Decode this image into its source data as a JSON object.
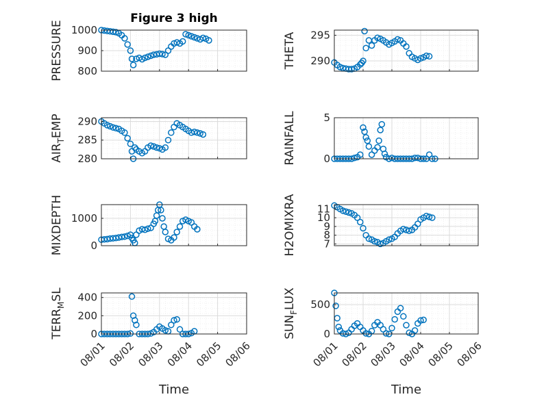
{
  "figure_title": "Figure 3 high",
  "x_axis_label": "Time",
  "x_ticks": [
    "08/01",
    "08/02",
    "08/03",
    "08/04",
    "08/05",
    "08/06"
  ],
  "colors": {
    "marker": "#0072BD",
    "axis": "#262626",
    "grid": "#DBDBDB",
    "minor_grid": "#E6E6E6"
  },
  "chart_data": [
    {
      "type": "scatter",
      "title": "Figure 3 high",
      "ylabel_main": "PRESSURE",
      "ylabel_sub": "",
      "ylabel_tail": "",
      "xlabel": "",
      "xlim": [
        0,
        5
      ],
      "ylim": [
        800,
        1000
      ],
      "yticks": [
        800,
        900,
        1000
      ],
      "xticks": [],
      "grid": true,
      "marker": "open-circle",
      "points": [
        [
          0.0,
          1000
        ],
        [
          0.1,
          998
        ],
        [
          0.2,
          996
        ],
        [
          0.3,
          994
        ],
        [
          0.4,
          992
        ],
        [
          0.5,
          990
        ],
        [
          0.6,
          985
        ],
        [
          0.7,
          975
        ],
        [
          0.8,
          960
        ],
        [
          0.9,
          930
        ],
        [
          1.0,
          900
        ],
        [
          1.05,
          860
        ],
        [
          1.1,
          830
        ],
        [
          1.2,
          860
        ],
        [
          1.3,
          865
        ],
        [
          1.4,
          858
        ],
        [
          1.5,
          865
        ],
        [
          1.6,
          870
        ],
        [
          1.7,
          875
        ],
        [
          1.8,
          880
        ],
        [
          1.9,
          882
        ],
        [
          2.0,
          885
        ],
        [
          2.1,
          883
        ],
        [
          2.2,
          880
        ],
        [
          2.3,
          900
        ],
        [
          2.4,
          920
        ],
        [
          2.5,
          935
        ],
        [
          2.6,
          940
        ],
        [
          2.7,
          935
        ],
        [
          2.8,
          945
        ],
        [
          2.9,
          980
        ],
        [
          3.0,
          975
        ],
        [
          3.1,
          970
        ],
        [
          3.2,
          965
        ],
        [
          3.3,
          960
        ],
        [
          3.4,
          955
        ],
        [
          3.5,
          962
        ],
        [
          3.6,
          958
        ],
        [
          3.7,
          950
        ]
      ]
    },
    {
      "type": "scatter",
      "title": "",
      "ylabel_main": "THETA",
      "ylabel_sub": "",
      "ylabel_tail": "",
      "xlabel": "",
      "xlim": [
        0,
        5
      ],
      "ylim": [
        288,
        296
      ],
      "yticks": [
        290,
        295
      ],
      "xticks": [],
      "grid": true,
      "marker": "open-circle",
      "points": [
        [
          0.0,
          289.7
        ],
        [
          0.1,
          289.2
        ],
        [
          0.2,
          288.8
        ],
        [
          0.3,
          288.6
        ],
        [
          0.4,
          288.5
        ],
        [
          0.5,
          288.4
        ],
        [
          0.6,
          288.4
        ],
        [
          0.7,
          288.5
        ],
        [
          0.8,
          288.8
        ],
        [
          0.9,
          289.3
        ],
        [
          1.0,
          290
        ],
        [
          1.1,
          292.5
        ],
        [
          1.2,
          294
        ],
        [
          1.3,
          293
        ],
        [
          1.4,
          294
        ],
        [
          1.5,
          294.5
        ],
        [
          1.6,
          294.3
        ],
        [
          1.7,
          294
        ],
        [
          1.8,
          293.6
        ],
        [
          1.9,
          293.2
        ],
        [
          2.0,
          293.5
        ],
        [
          2.1,
          293.8
        ],
        [
          2.2,
          294.2
        ],
        [
          2.3,
          294
        ],
        [
          2.4,
          293.4
        ],
        [
          2.5,
          292.8
        ],
        [
          2.6,
          291.5
        ],
        [
          2.7,
          290.8
        ],
        [
          2.8,
          290.5
        ],
        [
          2.9,
          290.2
        ],
        [
          3.0,
          290.5
        ],
        [
          3.1,
          290.7
        ],
        [
          3.2,
          291
        ],
        [
          1.05,
          295.8
        ],
        [
          0.95,
          289.6
        ],
        [
          3.3,
          290.9
        ]
      ]
    },
    {
      "type": "scatter",
      "title": "",
      "ylabel_main": "AIR",
      "ylabel_sub": "T",
      "ylabel_tail": "EMP",
      "xlabel": "",
      "xlim": [
        0,
        5
      ],
      "ylim": [
        280,
        291
      ],
      "yticks": [
        280,
        285,
        290
      ],
      "xticks": [],
      "grid": true,
      "marker": "open-circle",
      "points": [
        [
          0.0,
          290
        ],
        [
          0.1,
          289.5
        ],
        [
          0.2,
          289
        ],
        [
          0.3,
          288.7
        ],
        [
          0.4,
          288.4
        ],
        [
          0.5,
          288.2
        ],
        [
          0.6,
          288
        ],
        [
          0.7,
          287.5
        ],
        [
          0.8,
          287
        ],
        [
          0.9,
          285.5
        ],
        [
          1.0,
          284
        ],
        [
          1.05,
          282
        ],
        [
          1.1,
          280
        ],
        [
          1.15,
          283
        ],
        [
          1.2,
          282.5
        ],
        [
          1.3,
          282
        ],
        [
          1.4,
          281.5
        ],
        [
          1.5,
          282
        ],
        [
          1.6,
          283
        ],
        [
          1.7,
          283.5
        ],
        [
          1.8,
          283.3
        ],
        [
          1.9,
          283
        ],
        [
          2.0,
          282.8
        ],
        [
          2.1,
          282.5
        ],
        [
          2.2,
          283
        ],
        [
          2.3,
          285
        ],
        [
          2.4,
          287
        ],
        [
          2.5,
          288.5
        ],
        [
          2.6,
          289.5
        ],
        [
          2.7,
          289
        ],
        [
          2.8,
          288.5
        ],
        [
          2.9,
          288
        ],
        [
          3.0,
          287.5
        ],
        [
          3.1,
          287
        ],
        [
          3.2,
          287.2
        ],
        [
          3.3,
          287
        ],
        [
          3.4,
          286.8
        ],
        [
          3.5,
          286.5
        ]
      ]
    },
    {
      "type": "scatter",
      "title": "",
      "ylabel_main": "RAINFALL",
      "ylabel_sub": "",
      "ylabel_tail": "",
      "xlabel": "",
      "xlim": [
        0,
        5
      ],
      "ylim": [
        0,
        5
      ],
      "yticks": [
        0,
        5
      ],
      "xticks": [],
      "grid": true,
      "marker": "open-circle",
      "points": [
        [
          0.0,
          0
        ],
        [
          0.1,
          0
        ],
        [
          0.2,
          0
        ],
        [
          0.3,
          0
        ],
        [
          0.4,
          0
        ],
        [
          0.5,
          0
        ],
        [
          0.6,
          0
        ],
        [
          0.7,
          0.1
        ],
        [
          0.8,
          0.2
        ],
        [
          0.9,
          0.5
        ],
        [
          1.0,
          3.8
        ],
        [
          1.05,
          3.3
        ],
        [
          1.1,
          2.6
        ],
        [
          1.15,
          2.2
        ],
        [
          1.2,
          1.5
        ],
        [
          1.3,
          0.5
        ],
        [
          1.4,
          1.0
        ],
        [
          1.5,
          1.4
        ],
        [
          1.55,
          2.2
        ],
        [
          1.6,
          3.5
        ],
        [
          1.65,
          4.2
        ],
        [
          1.7,
          1.2
        ],
        [
          1.75,
          0.6
        ],
        [
          1.8,
          0.2
        ],
        [
          1.9,
          0
        ],
        [
          2.0,
          0.1
        ],
        [
          2.1,
          0
        ],
        [
          2.2,
          0
        ],
        [
          2.3,
          0
        ],
        [
          2.4,
          0
        ],
        [
          2.5,
          0
        ],
        [
          2.6,
          0
        ],
        [
          2.7,
          0
        ],
        [
          2.8,
          0.1
        ],
        [
          2.9,
          0.1
        ],
        [
          3.0,
          0
        ],
        [
          3.1,
          0
        ],
        [
          3.2,
          0
        ],
        [
          3.3,
          0.5
        ],
        [
          3.4,
          0
        ],
        [
          3.5,
          0
        ]
      ]
    },
    {
      "type": "scatter",
      "title": "",
      "ylabel_main": "MIXDEPTH",
      "ylabel_sub": "",
      "ylabel_tail": "",
      "xlabel": "",
      "xlim": [
        0,
        5
      ],
      "ylim": [
        0,
        1500
      ],
      "yticks": [
        0,
        1000
      ],
      "xticks": [],
      "grid": true,
      "marker": "open-circle",
      "points": [
        [
          0.0,
          220
        ],
        [
          0.1,
          230
        ],
        [
          0.2,
          240
        ],
        [
          0.3,
          260
        ],
        [
          0.4,
          270
        ],
        [
          0.5,
          280
        ],
        [
          0.6,
          300
        ],
        [
          0.7,
          320
        ],
        [
          0.8,
          330
        ],
        [
          0.9,
          360
        ],
        [
          1.0,
          400
        ],
        [
          1.05,
          280
        ],
        [
          1.1,
          200
        ],
        [
          1.15,
          100
        ],
        [
          1.2,
          400
        ],
        [
          1.3,
          550
        ],
        [
          1.4,
          600
        ],
        [
          1.5,
          580
        ],
        [
          1.6,
          620
        ],
        [
          1.7,
          650
        ],
        [
          1.8,
          800
        ],
        [
          1.85,
          900
        ],
        [
          1.9,
          1100
        ],
        [
          1.95,
          1300
        ],
        [
          2.0,
          1500
        ],
        [
          2.05,
          1300
        ],
        [
          2.1,
          1000
        ],
        [
          2.15,
          700
        ],
        [
          2.2,
          500
        ],
        [
          2.3,
          250
        ],
        [
          2.4,
          200
        ],
        [
          2.5,
          300
        ],
        [
          2.6,
          500
        ],
        [
          2.7,
          700
        ],
        [
          2.8,
          900
        ],
        [
          2.9,
          950
        ],
        [
          3.0,
          900
        ],
        [
          3.1,
          850
        ],
        [
          3.2,
          700
        ],
        [
          3.3,
          600
        ]
      ]
    },
    {
      "type": "scatter",
      "title": "",
      "ylabel_main": "H2OMIXRA",
      "ylabel_sub": "",
      "ylabel_tail": "",
      "xlabel": "",
      "xlim": [
        0,
        5
      ],
      "ylim": [
        6.8,
        11.5
      ],
      "yticks": [
        7,
        8,
        9,
        10,
        11
      ],
      "xticks": [],
      "grid": true,
      "marker": "open-circle",
      "points": [
        [
          0.0,
          11.4
        ],
        [
          0.1,
          11.2
        ],
        [
          0.2,
          11.0
        ],
        [
          0.3,
          10.8
        ],
        [
          0.4,
          10.7
        ],
        [
          0.5,
          10.6
        ],
        [
          0.6,
          10.5
        ],
        [
          0.7,
          10.3
        ],
        [
          0.8,
          10.0
        ],
        [
          0.9,
          9.5
        ],
        [
          1.0,
          8.8
        ],
        [
          1.1,
          8.0
        ],
        [
          1.2,
          7.6
        ],
        [
          1.3,
          7.5
        ],
        [
          1.4,
          7.3
        ],
        [
          1.5,
          7.2
        ],
        [
          1.6,
          7.0
        ],
        [
          1.7,
          7.1
        ],
        [
          1.8,
          7.3
        ],
        [
          1.9,
          7.5
        ],
        [
          2.0,
          7.6
        ],
        [
          2.1,
          7.8
        ],
        [
          2.2,
          8.2
        ],
        [
          2.3,
          8.5
        ],
        [
          2.4,
          8.7
        ],
        [
          2.5,
          8.6
        ],
        [
          2.6,
          8.5
        ],
        [
          2.7,
          8.6
        ],
        [
          2.8,
          8.9
        ],
        [
          2.9,
          9.3
        ],
        [
          3.0,
          9.8
        ],
        [
          3.1,
          10.0
        ],
        [
          3.2,
          10.2
        ],
        [
          3.3,
          10.1
        ],
        [
          3.4,
          10.0
        ]
      ]
    },
    {
      "type": "scatter",
      "title": "",
      "ylabel_main": "TERR",
      "ylabel_sub": "M",
      "ylabel_tail": "SL",
      "xlabel": "Time",
      "xlim": [
        0,
        5
      ],
      "ylim": [
        0,
        450
      ],
      "yticks": [
        0,
        200,
        400
      ],
      "xticks": [
        "08/01",
        "08/02",
        "08/03",
        "08/04",
        "08/05",
        "08/06"
      ],
      "grid": true,
      "marker": "open-circle",
      "points": [
        [
          0.0,
          0
        ],
        [
          0.1,
          0
        ],
        [
          0.2,
          0
        ],
        [
          0.3,
          0
        ],
        [
          0.4,
          0
        ],
        [
          0.5,
          0
        ],
        [
          0.6,
          0
        ],
        [
          0.7,
          0
        ],
        [
          0.8,
          0
        ],
        [
          0.9,
          0
        ],
        [
          1.0,
          5
        ],
        [
          1.05,
          410
        ],
        [
          1.1,
          200
        ],
        [
          1.15,
          150
        ],
        [
          1.2,
          100
        ],
        [
          1.3,
          0
        ],
        [
          1.4,
          0
        ],
        [
          1.5,
          0
        ],
        [
          1.6,
          0
        ],
        [
          1.7,
          5
        ],
        [
          1.8,
          20
        ],
        [
          1.9,
          50
        ],
        [
          2.0,
          80
        ],
        [
          2.1,
          60
        ],
        [
          2.2,
          40
        ],
        [
          2.3,
          30
        ],
        [
          2.4,
          100
        ],
        [
          2.5,
          150
        ],
        [
          2.6,
          160
        ],
        [
          2.7,
          50
        ],
        [
          2.8,
          0
        ],
        [
          2.9,
          0
        ],
        [
          3.0,
          0
        ],
        [
          3.1,
          10
        ],
        [
          3.2,
          30
        ]
      ]
    },
    {
      "type": "scatter",
      "title": "",
      "ylabel_main": "SUN",
      "ylabel_sub": "F",
      "ylabel_tail": "LUX",
      "xlabel": "Time",
      "xlim": [
        0,
        5
      ],
      "ylim": [
        0,
        700
      ],
      "yticks": [
        0,
        500
      ],
      "xticks": [
        "08/01",
        "08/02",
        "08/03",
        "08/04",
        "08/05",
        "08/06"
      ],
      "grid": true,
      "marker": "open-circle",
      "points": [
        [
          0.0,
          700
        ],
        [
          0.05,
          480
        ],
        [
          0.1,
          270
        ],
        [
          0.15,
          120
        ],
        [
          0.2,
          60
        ],
        [
          0.3,
          10
        ],
        [
          0.4,
          0
        ],
        [
          0.5,
          20
        ],
        [
          0.6,
          80
        ],
        [
          0.7,
          140
        ],
        [
          0.8,
          180
        ],
        [
          0.9,
          120
        ],
        [
          1.0,
          60
        ],
        [
          1.1,
          10
        ],
        [
          1.2,
          0
        ],
        [
          1.3,
          50
        ],
        [
          1.4,
          150
        ],
        [
          1.5,
          200
        ],
        [
          1.6,
          150
        ],
        [
          1.7,
          80
        ],
        [
          1.8,
          10
        ],
        [
          1.9,
          0
        ],
        [
          2.0,
          100
        ],
        [
          2.1,
          250
        ],
        [
          2.2,
          380
        ],
        [
          2.3,
          440
        ],
        [
          2.4,
          300
        ],
        [
          2.5,
          150
        ],
        [
          2.6,
          20
        ],
        [
          2.7,
          0
        ],
        [
          2.8,
          60
        ],
        [
          2.9,
          180
        ],
        [
          3.0,
          230
        ],
        [
          3.1,
          240
        ]
      ]
    }
  ]
}
